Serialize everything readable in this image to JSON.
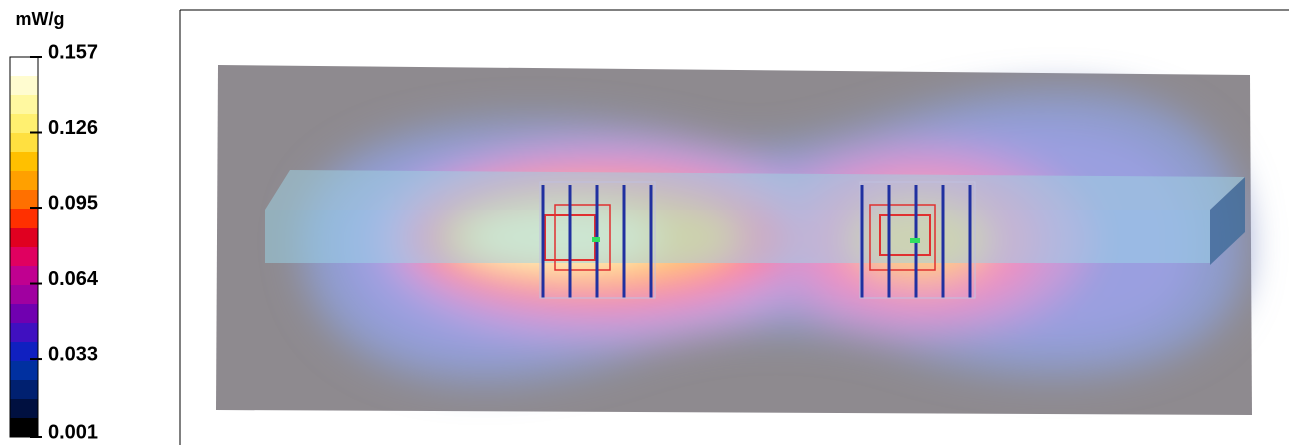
{
  "colorbar": {
    "unit": "mW/g",
    "lim": [
      0.001,
      0.157
    ],
    "ticks": [
      0.157,
      0.126,
      0.095,
      0.064,
      0.033,
      0.001
    ],
    "colors": [
      "#ffffff",
      "#fffcd0",
      "#fff8a0",
      "#fff070",
      "#ffe040",
      "#ffc000",
      "#ffa000",
      "#ff7000",
      "#ff3000",
      "#e00020",
      "#e00060",
      "#c00090",
      "#a000a0",
      "#7000b0",
      "#4010c0",
      "#1020c0",
      "#0030a0",
      "#002070",
      "#001040",
      "#000000"
    ]
  }
}
